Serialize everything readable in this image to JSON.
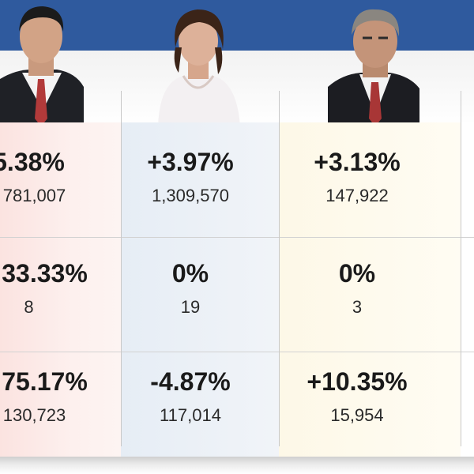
{
  "colors": {
    "header_blue": "#2f5a9e",
    "col_red_tint": "#fbe3e0",
    "col_blue_tint": "#e6edf5",
    "col_yellow_tint": "#fdf8e7"
  },
  "candidates": [
    {
      "portrait": "man-suit-red-tie-portrait"
    },
    {
      "portrait": "woman-white-blouse-portrait"
    },
    {
      "portrait": "man-suit-red-tie-grey-hair-portrait"
    }
  ],
  "rows": [
    {
      "cells": [
        {
          "pct": "5.38%",
          "count": "781,007"
        },
        {
          "pct": "+3.97%",
          "count": "1,309,570"
        },
        {
          "pct": "+3.13%",
          "count": "147,922"
        }
      ]
    },
    {
      "cells": [
        {
          "pct": "33.33%",
          "count": "8"
        },
        {
          "pct": "0%",
          "count": "19"
        },
        {
          "pct": "0%",
          "count": "3"
        }
      ]
    },
    {
      "cells": [
        {
          "pct": "75.17%",
          "count": "130,723"
        },
        {
          "pct": "-4.87%",
          "count": "117,014"
        },
        {
          "pct": "+10.35%",
          "count": "15,954"
        }
      ]
    }
  ]
}
